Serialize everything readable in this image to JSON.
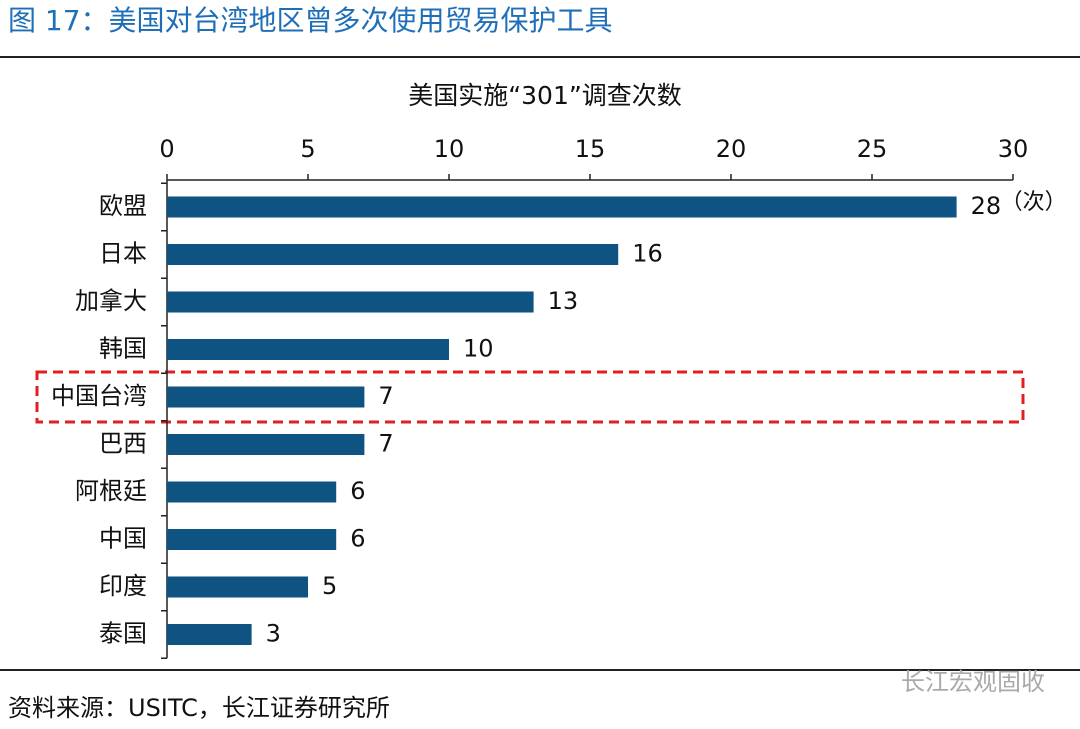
{
  "figure_title": "图 17：美国对台湾地区曾多次使用贸易保护工具",
  "chart_data": {
    "type": "bar",
    "orientation": "horizontal",
    "title": "美国实施“301”调查次数",
    "categories": [
      "欧盟",
      "日本",
      "加拿大",
      "韩国",
      "中国台湾",
      "巴西",
      "阿根廷",
      "中国",
      "印度",
      "泰国"
    ],
    "values": [
      28,
      16,
      13,
      10,
      7,
      7,
      6,
      6,
      5,
      3
    ],
    "color": "#0f5382",
    "xlim": [
      0,
      30
    ],
    "xticks": [
      0,
      5,
      10,
      15,
      20,
      25,
      30
    ],
    "unit_annotation": "（次）"
  },
  "source": "资料来源：USITC，长江证券研究所",
  "watermark": "长江宏观固收"
}
